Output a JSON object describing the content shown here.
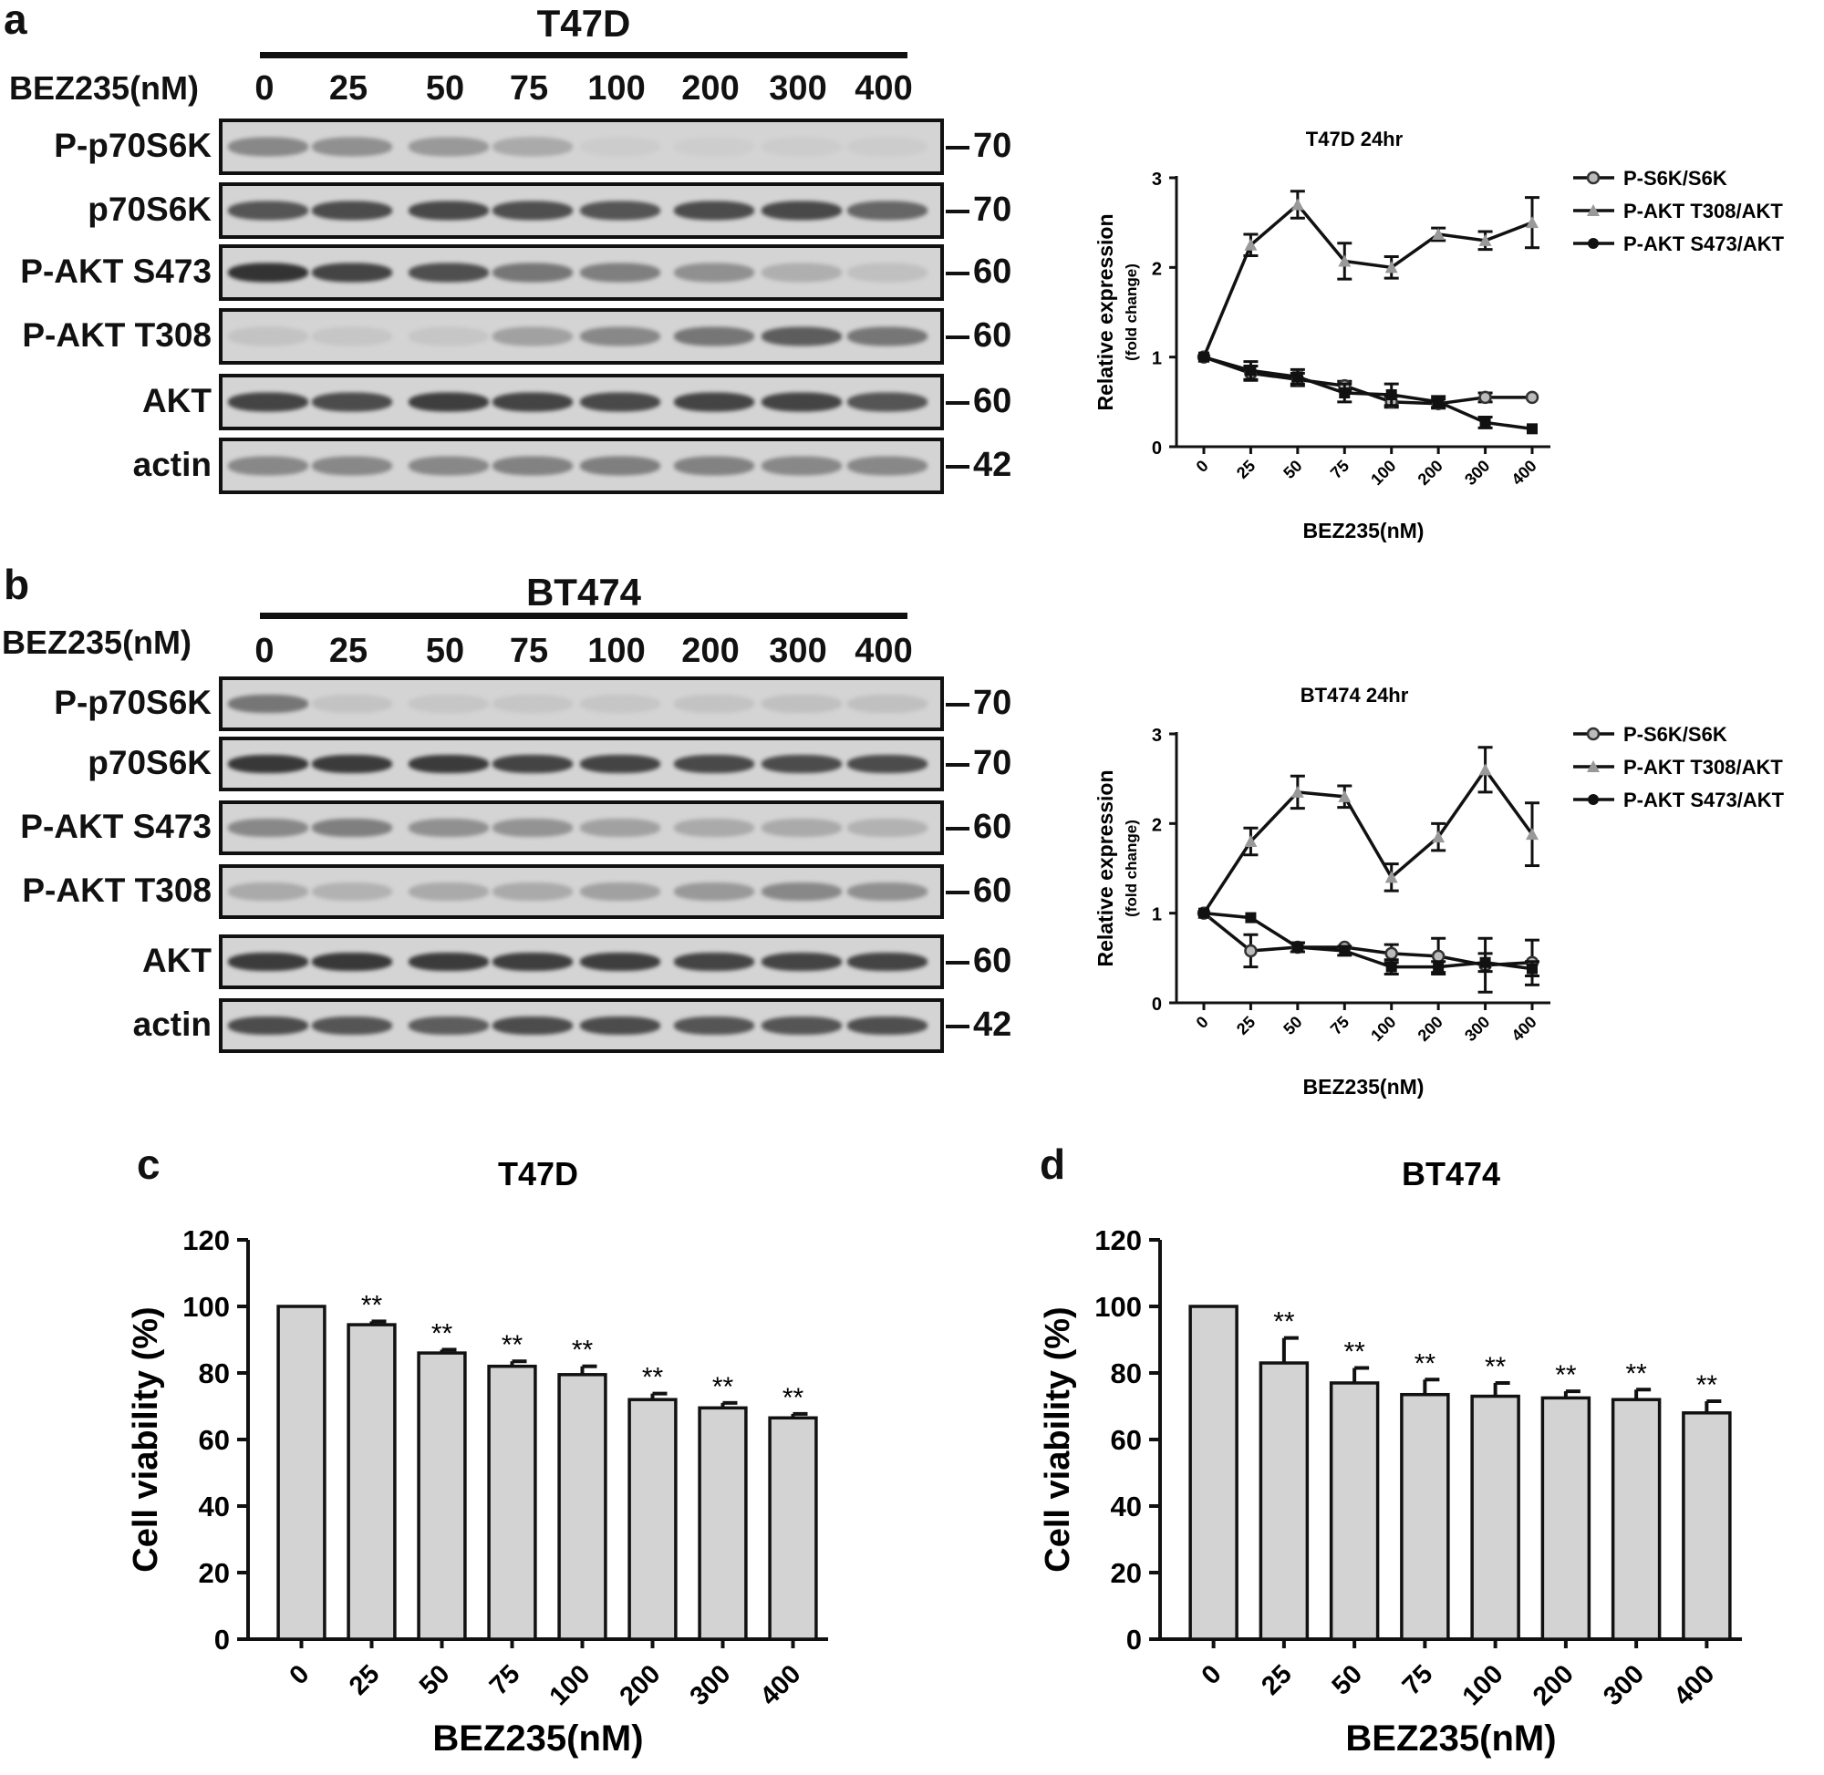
{
  "panel_a": {
    "letter": "a",
    "cell_line": "T47D",
    "conc_label": "BEZ235(nM)",
    "concentrations": [
      "0",
      "25",
      "50",
      "75",
      "100",
      "200",
      "300",
      "400"
    ],
    "rows": [
      {
        "label": "P-p70S6K",
        "mw": "70",
        "intensity": [
          0.45,
          0.4,
          0.35,
          0.25,
          0.05,
          0.04,
          0.05,
          0.05
        ]
      },
      {
        "label": "p70S6K",
        "mw": "70",
        "intensity": [
          0.75,
          0.8,
          0.82,
          0.78,
          0.75,
          0.8,
          0.82,
          0.65
        ]
      },
      {
        "label": "P-AKT S473",
        "mw": "60",
        "intensity": [
          0.95,
          0.85,
          0.78,
          0.55,
          0.5,
          0.4,
          0.22,
          0.12
        ]
      },
      {
        "label": "P-AKT T308",
        "mw": "60",
        "intensity": [
          0.1,
          0.08,
          0.08,
          0.3,
          0.45,
          0.55,
          0.7,
          0.55
        ]
      },
      {
        "label": "AKT",
        "mw": "60",
        "intensity": [
          0.85,
          0.8,
          0.88,
          0.85,
          0.82,
          0.85,
          0.85,
          0.75
        ]
      },
      {
        "label": "actin",
        "mw": "42",
        "intensity": [
          0.45,
          0.45,
          0.45,
          0.48,
          0.5,
          0.48,
          0.45,
          0.45
        ]
      }
    ]
  },
  "panel_b": {
    "letter": "b",
    "cell_line": "BT474",
    "conc_label": "BEZ235(nM)",
    "concentrations": [
      "0",
      "25",
      "50",
      "75",
      "100",
      "200",
      "300",
      "400"
    ],
    "rows": [
      {
        "label": "P-p70S6K",
        "mw": "70",
        "intensity": [
          0.55,
          0.1,
          0.08,
          0.08,
          0.08,
          0.1,
          0.12,
          0.12
        ]
      },
      {
        "label": "p70S6K",
        "mw": "70",
        "intensity": [
          0.92,
          0.9,
          0.9,
          0.85,
          0.85,
          0.82,
          0.8,
          0.8
        ]
      },
      {
        "label": "P-AKT S473",
        "mw": "60",
        "intensity": [
          0.45,
          0.5,
          0.4,
          0.38,
          0.3,
          0.25,
          0.25,
          0.2
        ]
      },
      {
        "label": "P-AKT T308",
        "mw": "60",
        "intensity": [
          0.25,
          0.2,
          0.25,
          0.25,
          0.3,
          0.35,
          0.45,
          0.4
        ]
      },
      {
        "label": "AKT",
        "mw": "60",
        "intensity": [
          0.9,
          0.92,
          0.9,
          0.88,
          0.88,
          0.85,
          0.85,
          0.85
        ]
      },
      {
        "label": "actin",
        "mw": "42",
        "intensity": [
          0.8,
          0.75,
          0.7,
          0.8,
          0.8,
          0.75,
          0.75,
          0.78
        ]
      }
    ]
  },
  "chart_data": [
    {
      "type": "line",
      "title": "T47D  24hr",
      "xlabel": "BEZ235(nM)",
      "ylabel": "Relative expression",
      "ylabel_sub": "(fold change)",
      "categories": [
        "0",
        "25",
        "50",
        "75",
        "100",
        "200",
        "300",
        "400"
      ],
      "ylim": [
        0,
        3
      ],
      "yticks": [
        "0",
        "1",
        "2",
        "3"
      ],
      "series": [
        {
          "name": "P-S6K/S6K",
          "marker": "circle-open",
          "values": [
            1.0,
            0.82,
            0.75,
            0.68,
            0.5,
            0.48,
            0.55,
            0.55
          ],
          "errors": [
            0.03,
            0.08,
            0.07,
            0.05,
            0.06,
            0.05,
            0.05,
            0.03
          ]
        },
        {
          "name": "P-AKT T308/AKT",
          "marker": "triangle",
          "values": [
            1.0,
            2.25,
            2.7,
            2.07,
            2.0,
            2.37,
            2.3,
            2.5
          ],
          "errors": [
            0.03,
            0.12,
            0.15,
            0.2,
            0.12,
            0.07,
            0.1,
            0.28
          ]
        },
        {
          "name": "P-AKT S473/AKT",
          "marker": "square",
          "values": [
            1.0,
            0.85,
            0.78,
            0.6,
            0.58,
            0.5,
            0.27,
            0.2
          ],
          "errors": [
            0.03,
            0.1,
            0.08,
            0.1,
            0.12,
            0.06,
            0.06,
            0.04
          ]
        }
      ]
    },
    {
      "type": "line",
      "title": "BT474  24hr",
      "xlabel": "BEZ235(nM)",
      "ylabel": "Relative expression",
      "ylabel_sub": "(fold change)",
      "categories": [
        "0",
        "25",
        "50",
        "75",
        "100",
        "200",
        "300",
        "400"
      ],
      "ylim": [
        0,
        3
      ],
      "yticks": [
        "0",
        "1",
        "2",
        "3"
      ],
      "series": [
        {
          "name": "P-S6K/S6K",
          "marker": "circle-open",
          "values": [
            1.0,
            0.58,
            0.62,
            0.62,
            0.55,
            0.52,
            0.42,
            0.45
          ],
          "errors": [
            0.03,
            0.18,
            0.05,
            0.03,
            0.1,
            0.2,
            0.3,
            0.25
          ]
        },
        {
          "name": "P-AKT T308/AKT",
          "marker": "triangle",
          "values": [
            1.0,
            1.8,
            2.35,
            2.3,
            1.4,
            1.85,
            2.6,
            1.88
          ],
          "errors": [
            0.03,
            0.15,
            0.18,
            0.12,
            0.15,
            0.15,
            0.25,
            0.35
          ]
        },
        {
          "name": "P-AKT S473/AKT",
          "marker": "square",
          "values": [
            1.0,
            0.95,
            0.62,
            0.58,
            0.4,
            0.4,
            0.45,
            0.38
          ],
          "errors": [
            0.03,
            0.03,
            0.05,
            0.05,
            0.08,
            0.06,
            0.1,
            0.08
          ]
        }
      ]
    },
    {
      "type": "bar",
      "panel": "c",
      "title": "T47D",
      "xlabel": "BEZ235(nM)",
      "ylabel": "Cell viability (%)",
      "categories": [
        "0",
        "25",
        "50",
        "75",
        "100",
        "200",
        "300",
        "400"
      ],
      "values": [
        100,
        94.5,
        86,
        82,
        79.5,
        72,
        69.5,
        66.5
      ],
      "errors": [
        0,
        1.0,
        1.0,
        1.5,
        2.5,
        1.8,
        1.5,
        1.2
      ],
      "annotations": [
        "",
        "**",
        "**",
        "**",
        "**",
        "**",
        "**",
        "**"
      ],
      "ylim": [
        0,
        120
      ],
      "yticks": [
        "0",
        "20",
        "40",
        "60",
        "80",
        "100",
        "120"
      ]
    },
    {
      "type": "bar",
      "panel": "d",
      "title": "BT474",
      "xlabel": "BEZ235(nM)",
      "ylabel": "Cell viability (%)",
      "categories": [
        "0",
        "25",
        "50",
        "75",
        "100",
        "200",
        "300",
        "400"
      ],
      "values": [
        100,
        83,
        77,
        73.5,
        73,
        72.5,
        72,
        68
      ],
      "errors": [
        0,
        7.5,
        4.5,
        4.5,
        4.0,
        2.0,
        3.0,
        3.5
      ],
      "annotations": [
        "",
        "**",
        "**",
        "**",
        "**",
        "**",
        "**",
        "**"
      ],
      "ylim": [
        0,
        120
      ],
      "yticks": [
        "0",
        "20",
        "40",
        "60",
        "80",
        "100",
        "120"
      ]
    }
  ]
}
